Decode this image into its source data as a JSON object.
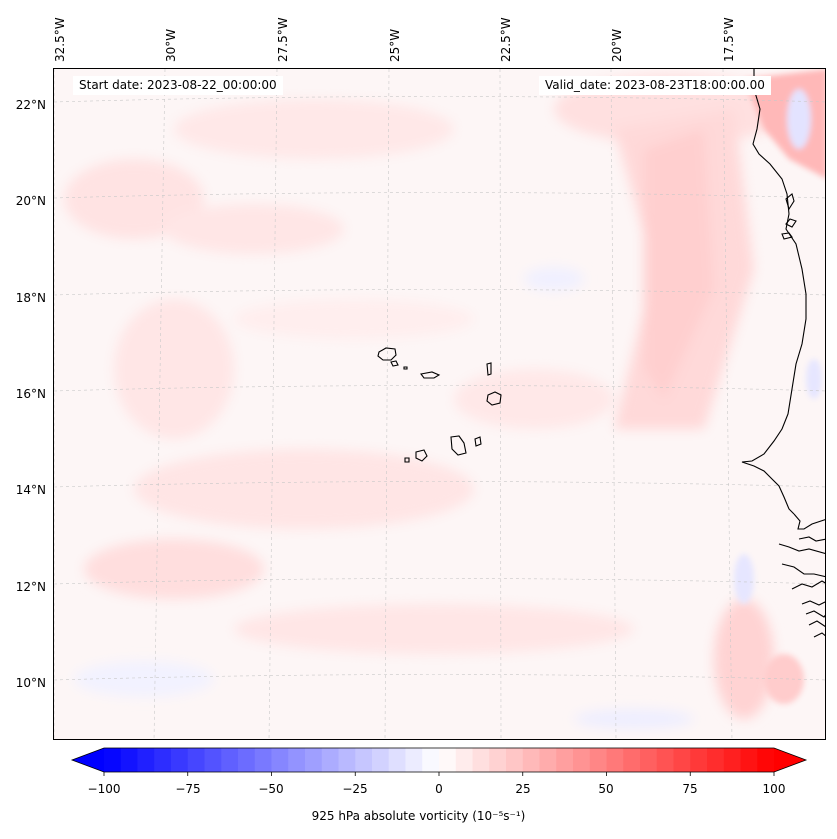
{
  "map": {
    "start_date": "Start date: 2023-08-22_00:00:00",
    "valid_date": "Valid_date: 2023-08-23T18:00:00.00",
    "lon_labels": [
      "32.5°W",
      "30°W",
      "27.5°W",
      "25°W",
      "22.5°W",
      "20°W",
      "17.5°W"
    ],
    "lat_labels": [
      "22°N",
      "20°N",
      "18°N",
      "16°N",
      "14°N",
      "12°N",
      "10°N"
    ],
    "extent": {
      "lon_min": -33.0,
      "lon_max": -15.0,
      "lat_min": 9.0,
      "lat_max": 23.0
    },
    "features": [
      "Cape Verde islands",
      "West African coastline (Senegal, Mauritania, Gambia, Guinea-Bissau)"
    ],
    "colors": {
      "positive": "#ff0000",
      "negative": "#0000ff",
      "neutral": "#ffffff",
      "coastline": "#000000"
    }
  },
  "colorbar": {
    "label_prefix": "925 hPa absolute vorticity",
    "label_units": "(10⁻⁵s⁻¹)",
    "ticks": [
      "−100",
      "−75",
      "−50",
      "−25",
      "0",
      "25",
      "50",
      "75",
      "100"
    ],
    "range": [
      -100,
      100
    ],
    "step": 5
  }
}
